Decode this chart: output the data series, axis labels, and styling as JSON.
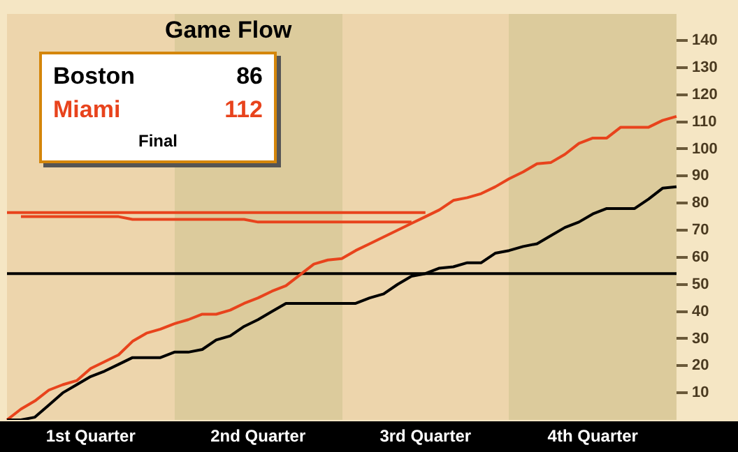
{
  "chart_data": {
    "type": "line",
    "title": "Game Flow",
    "annotations": [
      "86",
      "112",
      "Final"
    ],
    "categories": [
      null,
      null,
      null,
      null,
      null,
      null,
      "1st Quarter",
      null,
      null,
      null,
      null,
      null,
      null,
      null,
      null,
      null,
      null,
      null,
      "2nd Quarter",
      null,
      null,
      null,
      null,
      null,
      null,
      null,
      null,
      null,
      null,
      null,
      "3rd Quarter",
      null,
      null,
      null,
      null,
      null,
      null,
      null,
      null,
      null,
      null,
      null,
      "4th Quarter",
      null,
      null,
      null,
      null,
      null,
      null
    ],
    "ylim": [
      0,
      150
    ],
    "yticks": [
      10,
      20,
      30,
      40,
      50,
      60,
      70,
      80,
      90,
      100,
      110,
      120,
      130,
      140
    ],
    "series": [
      {
        "name": "Boston",
        "color": "#000000",
        "values": [
          0,
          0,
          1,
          5.5,
          10,
          13,
          16,
          18,
          20.5,
          23,
          23,
          23,
          25,
          25,
          26,
          29.5,
          31,
          34.5,
          37,
          40,
          43,
          43,
          43,
          43,
          43,
          43,
          45,
          46.5,
          50,
          53,
          54,
          56,
          56.5,
          58,
          58,
          61.5,
          62.5,
          64,
          65,
          68,
          71,
          73,
          76,
          78,
          78,
          78,
          81.5,
          85.5,
          86
        ]
      },
      {
        "name": "Miami",
        "color": "#e8431c",
        "values": [
          0,
          4,
          7,
          11,
          13,
          14.5,
          19,
          21.5,
          24,
          29,
          32,
          33.5,
          35.5,
          37,
          39,
          39,
          40.5,
          43,
          45,
          47.5,
          49.5,
          53.5,
          57.5,
          59,
          59.5,
          62.5,
          65,
          67.5,
          70,
          72.5,
          75,
          77.5,
          81,
          82,
          83.5,
          86,
          89,
          91.5,
          94.5,
          95,
          98,
          102,
          104,
          104,
          108,
          108,
          108,
          110.5,
          112
        ]
      },
      {
        "color": "#e8431c",
        "values": [
          76.5,
          76.5,
          76.5,
          76.5,
          76.5,
          76.5,
          76.5,
          76.5,
          76.5,
          76.5,
          76.5,
          76.5,
          76.5,
          76.5,
          76.5,
          76.5,
          76.5,
          76.5,
          76.5,
          76.5,
          76.5,
          76.5,
          76.5,
          76.5,
          76.5,
          76.5,
          76.5,
          76.5,
          76.5,
          76.5,
          76.5,
          null,
          null,
          null,
          null,
          null,
          null,
          null,
          null,
          null,
          null,
          null,
          null,
          null,
          null,
          null,
          null,
          null,
          null
        ]
      },
      {
        "color": "#e8431c",
        "values": [
          null,
          75,
          75,
          75,
          75,
          75,
          75,
          75,
          75,
          74,
          74,
          74,
          74,
          74,
          74,
          74,
          74,
          74,
          73,
          73,
          73,
          73,
          73,
          73,
          73,
          73,
          73,
          73,
          73,
          73,
          null,
          null,
          null,
          null,
          null,
          null,
          null,
          null,
          null,
          null,
          null,
          null,
          null,
          null,
          null,
          null,
          null,
          null,
          null
        ]
      },
      {
        "color": "#000000",
        "values": [
          54,
          54,
          54,
          54,
          54,
          54,
          54,
          54,
          54,
          54,
          54,
          54,
          54,
          54,
          54,
          54,
          54,
          54,
          54,
          54,
          54,
          54,
          54,
          54,
          54,
          54,
          54,
          54,
          54,
          54,
          54,
          54,
          54,
          54,
          54,
          54,
          54,
          54,
          54,
          54,
          54,
          54,
          54,
          54,
          54,
          54,
          54,
          54,
          54
        ]
      }
    ]
  }
}
